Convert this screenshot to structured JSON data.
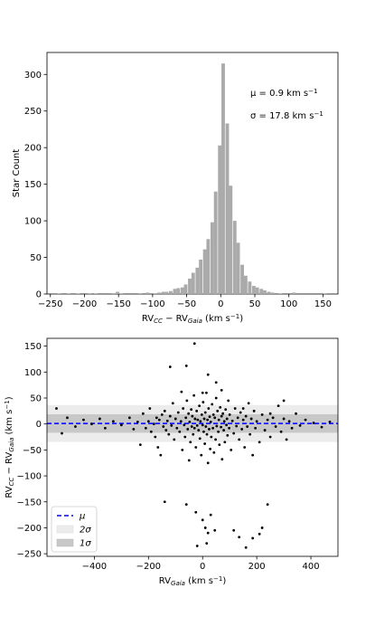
{
  "chart_data": [
    {
      "type": "bar",
      "panel": "histogram",
      "xlabel": "RV CC − RV Gaia (km s⁻¹)",
      "xlabel_parts": {
        "a": "RV",
        "a_sub": "CC",
        "mid": " − RV",
        "b_sub": "Gaia",
        "unit": " (km s",
        "exp": "−1",
        "close": ")"
      },
      "ylabel": "Star Count",
      "xlim": [
        -255,
        172
      ],
      "ylim": [
        0,
        330
      ],
      "xticks": [
        -250,
        -200,
        -150,
        -100,
        -50,
        0,
        50,
        100,
        150
      ],
      "yticks": [
        0,
        50,
        100,
        150,
        200,
        250,
        300
      ],
      "bin_width": 5.5,
      "bar_color": "#aaaaaa",
      "annotations": [
        {
          "prefix": "μ = 0.9 km s",
          "exp": "−1",
          "anchor": "top-right"
        },
        {
          "prefix": "σ = 17.8 km s",
          "exp": "−1",
          "anchor": "top-right"
        }
      ],
      "bins": [
        [
          -240,
          1
        ],
        [
          -226,
          1
        ],
        [
          -212,
          1
        ],
        [
          -195,
          1
        ],
        [
          -186,
          1
        ],
        [
          -160,
          1
        ],
        [
          -154,
          3
        ],
        [
          -148,
          1
        ],
        [
          -121,
          1
        ],
        [
          -110,
          2
        ],
        [
          -99,
          1
        ],
        [
          -93,
          2
        ],
        [
          -87,
          3
        ],
        [
          -82,
          3
        ],
        [
          -76,
          4
        ],
        [
          -70,
          7
        ],
        [
          -65,
          8
        ],
        [
          -59,
          9
        ],
        [
          -54,
          13
        ],
        [
          -48,
          21
        ],
        [
          -43,
          29
        ],
        [
          -37,
          36
        ],
        [
          -32,
          47
        ],
        [
          -26,
          61
        ],
        [
          -21,
          75
        ],
        [
          -15,
          98
        ],
        [
          -10,
          140
        ],
        [
          -4,
          203
        ],
        [
          1,
          315
        ],
        [
          7,
          233
        ],
        [
          12,
          148
        ],
        [
          18,
          100
        ],
        [
          23,
          70
        ],
        [
          29,
          40
        ],
        [
          34,
          25
        ],
        [
          40,
          17
        ],
        [
          46,
          11
        ],
        [
          51,
          9
        ],
        [
          57,
          7
        ],
        [
          62,
          5
        ],
        [
          68,
          3
        ],
        [
          73,
          2
        ],
        [
          85,
          1
        ],
        [
          105,
          2
        ],
        [
          150,
          1
        ]
      ]
    },
    {
      "type": "scatter",
      "panel": "residuals",
      "xlabel_parts": {
        "a": "RV",
        "a_sub": "Gaia",
        "unit": " (km s",
        "exp": "−1",
        "close": ")"
      },
      "ylabel_parts": {
        "a": "RV",
        "a_sub": "CC",
        "mid": " − RV",
        "b_sub": "Gaia",
        "unit": " (km s",
        "exp": "−1",
        "close": ")"
      },
      "xlim": [
        -575,
        500
      ],
      "ylim": [
        -255,
        165
      ],
      "xticks": [
        -400,
        -200,
        0,
        200,
        400
      ],
      "yticks": [
        -250,
        -200,
        -150,
        -100,
        -50,
        0,
        50,
        100,
        150
      ],
      "mu": 0.9,
      "sigma": 17.8,
      "mean_line_color": "#0000ff",
      "band_1sigma_color": "#c8c8c8",
      "band_2sigma_color": "#ececec",
      "point_color": "#000000",
      "legend_position": "lower-left",
      "legend": [
        {
          "key": "mu",
          "label": "μ"
        },
        {
          "key": "2sigma",
          "label": "2σ"
        },
        {
          "key": "1sigma",
          "label": "1σ"
        }
      ],
      "points": [
        [
          -540,
          30
        ],
        [
          -520,
          -18
        ],
        [
          -500,
          12
        ],
        [
          -470,
          -5
        ],
        [
          -440,
          8
        ],
        [
          -410,
          0
        ],
        [
          -380,
          10
        ],
        [
          -360,
          -8
        ],
        [
          -330,
          5
        ],
        [
          -300,
          -2
        ],
        [
          -270,
          12
        ],
        [
          -255,
          -10
        ],
        [
          -240,
          4
        ],
        [
          -230,
          -40
        ],
        [
          -220,
          20
        ],
        [
          -210,
          -8
        ],
        [
          -200,
          5
        ],
        [
          -195,
          30
        ],
        [
          -190,
          -15
        ],
        [
          -180,
          0
        ],
        [
          -175,
          -25
        ],
        [
          -170,
          12
        ],
        [
          -165,
          -45
        ],
        [
          -160,
          8
        ],
        [
          -155,
          -60
        ],
        [
          -150,
          18
        ],
        [
          -145,
          -5
        ],
        [
          -140,
          25
        ],
        [
          -135,
          -12
        ],
        [
          -130,
          6
        ],
        [
          -125,
          -20
        ],
        [
          -120,
          15
        ],
        [
          -115,
          -3
        ],
        [
          -110,
          40
        ],
        [
          -105,
          -30
        ],
        [
          -100,
          10
        ],
        [
          -95,
          -8
        ],
        [
          -90,
          22
        ],
        [
          -85,
          -15
        ],
        [
          -80,
          5
        ],
        [
          -78,
          62
        ],
        [
          -75,
          -50
        ],
        [
          -72,
          30
        ],
        [
          -68,
          -2
        ],
        [
          -65,
          -25
        ],
        [
          -62,
          12
        ],
        [
          -58,
          45
        ],
        [
          -55,
          -10
        ],
        [
          -52,
          20
        ],
        [
          -50,
          -70
        ],
        [
          -48,
          4
        ],
        [
          -45,
          -35
        ],
        [
          -42,
          28
        ],
        [
          -40,
          -5
        ],
        [
          -38,
          15
        ],
        [
          -35,
          -20
        ],
        [
          -32,
          55
        ],
        [
          -30,
          -8
        ],
        [
          -28,
          10
        ],
        [
          -25,
          -45
        ],
        [
          -22,
          25
        ],
        [
          -20,
          -3
        ],
        [
          -18,
          8
        ],
        [
          -15,
          -12
        ],
        [
          -12,
          35
        ],
        [
          -10,
          -28
        ],
        [
          -8,
          5
        ],
        [
          -5,
          -60
        ],
        [
          -3,
          18
        ],
        [
          0,
          -2
        ],
        [
          2,
          42
        ],
        [
          4,
          -15
        ],
        [
          6,
          10
        ],
        [
          8,
          -38
        ],
        [
          10,
          22
        ],
        [
          12,
          -5
        ],
        [
          14,
          60
        ],
        [
          16,
          -20
        ],
        [
          18,
          8
        ],
        [
          20,
          -75
        ],
        [
          22,
          30
        ],
        [
          24,
          -10
        ],
        [
          26,
          14
        ],
        [
          28,
          -48
        ],
        [
          30,
          4
        ],
        [
          32,
          -25
        ],
        [
          35,
          38
        ],
        [
          38,
          -8
        ],
        [
          40,
          18
        ],
        [
          42,
          -55
        ],
        [
          45,
          12
        ],
        [
          48,
          -30
        ],
        [
          50,
          50
        ],
        [
          52,
          -4
        ],
        [
          55,
          25
        ],
        [
          58,
          -15
        ],
        [
          60,
          8
        ],
        [
          62,
          -40
        ],
        [
          65,
          32
        ],
        [
          68,
          -6
        ],
        [
          70,
          15
        ],
        [
          72,
          -68
        ],
        [
          75,
          20
        ],
        [
          78,
          -12
        ],
        [
          80,
          5
        ],
        [
          82,
          -35
        ],
        [
          85,
          28
        ],
        [
          88,
          -2
        ],
        [
          90,
          10
        ],
        [
          92,
          -22
        ],
        [
          95,
          45
        ],
        [
          98,
          -8
        ],
        [
          100,
          18
        ],
        [
          105,
          -50
        ],
        [
          110,
          6
        ],
        [
          115,
          -18
        ],
        [
          120,
          30
        ],
        [
          125,
          -4
        ],
        [
          130,
          12
        ],
        [
          135,
          -30
        ],
        [
          140,
          22
        ],
        [
          145,
          -10
        ],
        [
          150,
          8
        ],
        [
          155,
          -45
        ],
        [
          160,
          15
        ],
        [
          165,
          -5
        ],
        [
          170,
          40
        ],
        [
          175,
          -20
        ],
        [
          180,
          10
        ],
        [
          185,
          -60
        ],
        [
          190,
          25
        ],
        [
          195,
          -8
        ],
        [
          200,
          5
        ],
        [
          210,
          -35
        ],
        [
          220,
          18
        ],
        [
          230,
          -12
        ],
        [
          240,
          8
        ],
        [
          250,
          -25
        ],
        [
          260,
          12
        ],
        [
          270,
          -5
        ],
        [
          280,
          35
        ],
        [
          290,
          -15
        ],
        [
          300,
          10
        ],
        [
          310,
          -30
        ],
        [
          320,
          5
        ],
        [
          330,
          -8
        ],
        [
          345,
          20
        ],
        [
          360,
          -3
        ],
        [
          380,
          8
        ],
        [
          410,
          2
        ],
        [
          440,
          -6
        ],
        [
          470,
          4
        ],
        [
          -140,
          -150
        ],
        [
          -60,
          -155
        ],
        [
          -25,
          -170
        ],
        [
          0,
          -185
        ],
        [
          10,
          -200
        ],
        [
          15,
          -230
        ],
        [
          20,
          -210
        ],
        [
          -20,
          -235
        ],
        [
          30,
          -175
        ],
        [
          45,
          -205
        ],
        [
          115,
          -205
        ],
        [
          135,
          -218
        ],
        [
          160,
          -238
        ],
        [
          185,
          -220
        ],
        [
          210,
          -212
        ],
        [
          220,
          -200
        ],
        [
          240,
          -155
        ],
        [
          -120,
          110
        ],
        [
          -60,
          112
        ],
        [
          -30,
          155
        ],
        [
          0,
          60
        ],
        [
          20,
          95
        ],
        [
          50,
          80
        ],
        [
          70,
          65
        ],
        [
          150,
          30
        ],
        [
          250,
          20
        ],
        [
          300,
          45
        ]
      ]
    }
  ]
}
